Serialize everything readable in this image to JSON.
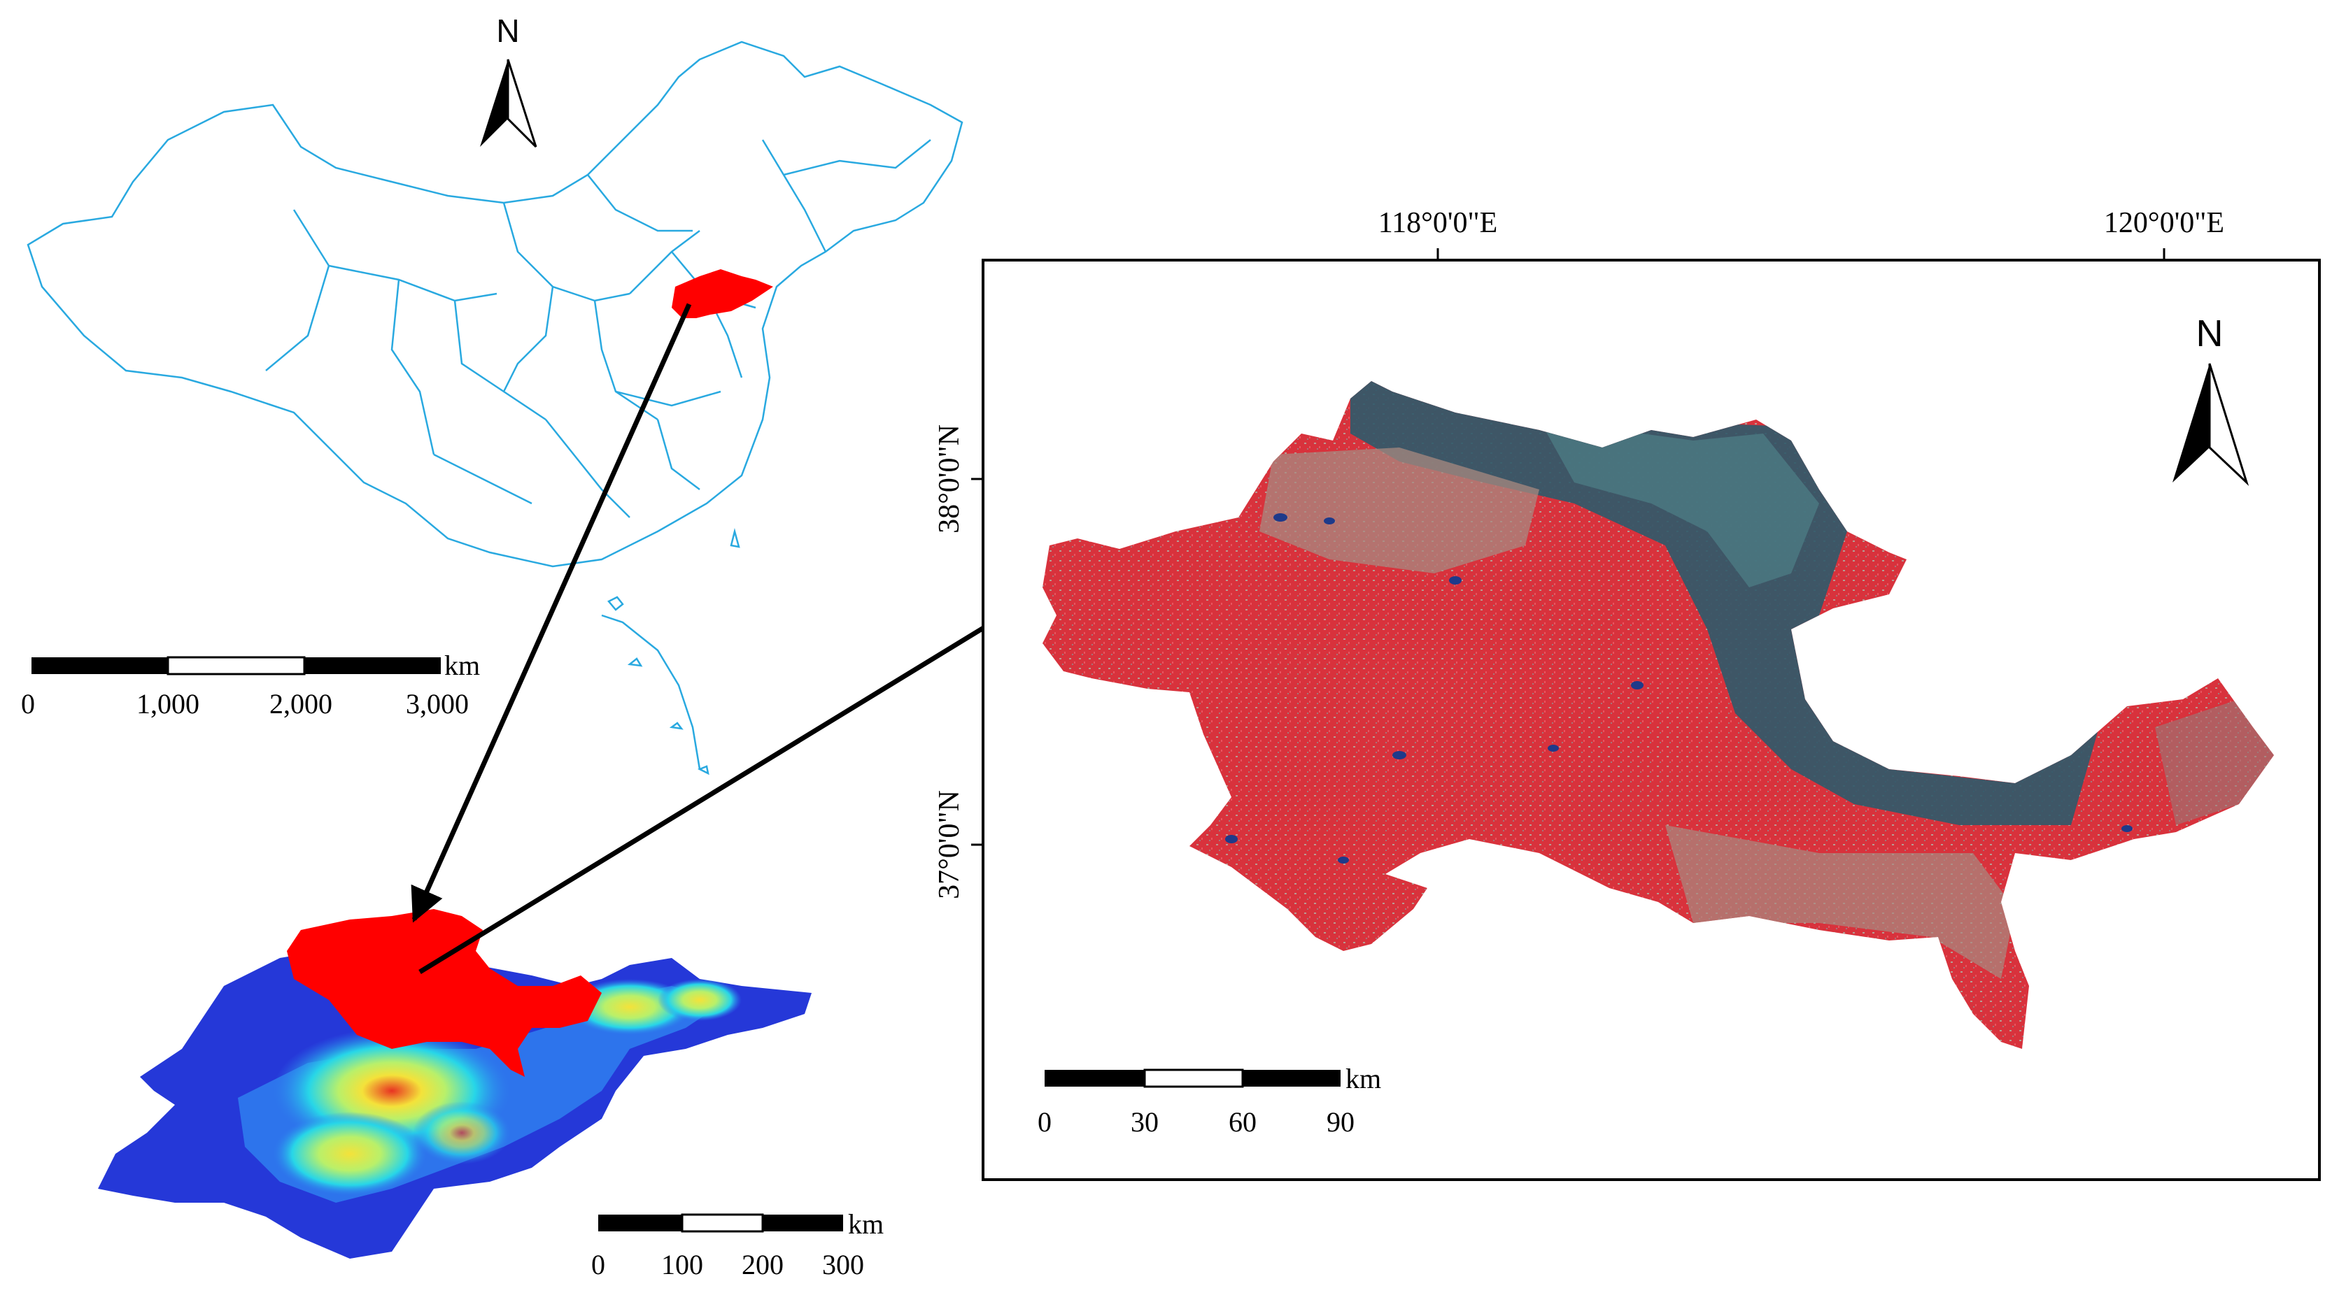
{
  "china_panel": {
    "north_label": "N",
    "scale": {
      "unit": "km",
      "ticks": [
        "0",
        "1,000",
        "2,000",
        "3,000"
      ]
    },
    "boundary_color": "#29a9e0",
    "highlight_color": "#ff0000"
  },
  "province_panel": {
    "scale": {
      "unit": "km",
      "ticks": [
        "0",
        "100",
        "200",
        "300"
      ]
    },
    "elevation_colors": [
      "#2538d8",
      "#2f7ff0",
      "#27d6e8",
      "#b9f06a",
      "#f4e23a",
      "#e83222"
    ],
    "highlight_color": "#ff0000"
  },
  "study_area_panel": {
    "north_label": "N",
    "lon_labels": [
      "118°0'0\"E",
      "120°0'0\"E"
    ],
    "lat_labels": [
      "38°0'0\"N",
      "37°0'0\"N"
    ],
    "scale": {
      "unit": "km",
      "ticks": [
        "0",
        "30",
        "60",
        "90"
      ]
    },
    "image_colors": {
      "cropland": "#d8323c",
      "bare": "#a88a80",
      "coastal": "#2d5a6a",
      "water": "#1e3a8a"
    }
  }
}
